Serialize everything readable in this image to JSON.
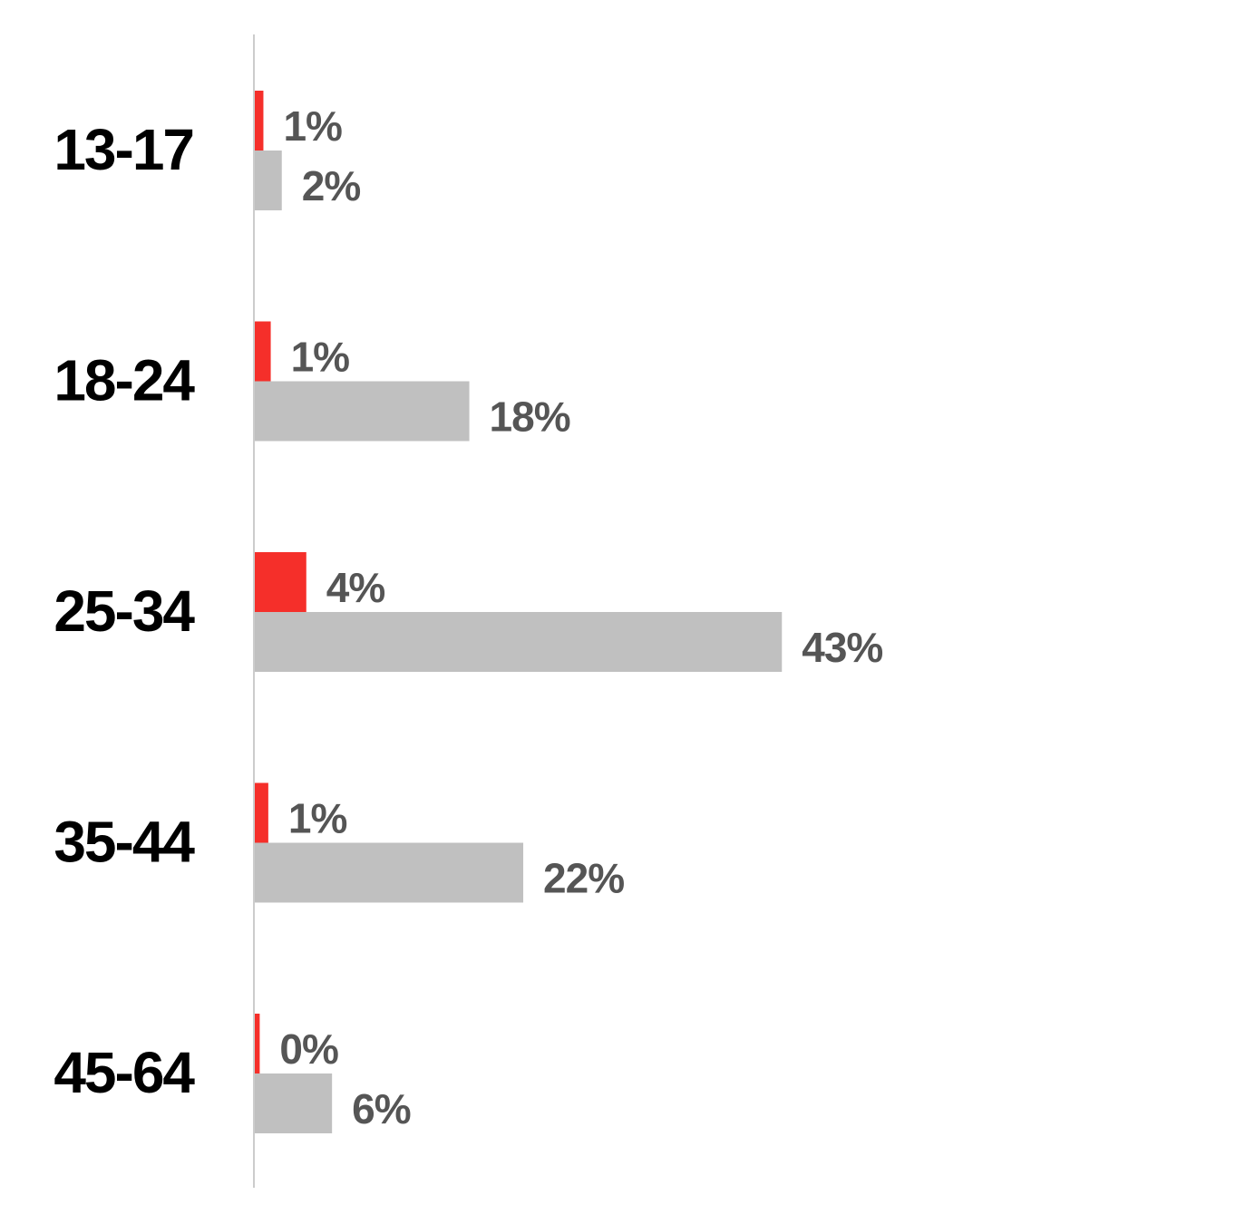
{
  "chart_data": {
    "type": "bar",
    "orientation": "horizontal",
    "categories": [
      "13-17",
      "18-24",
      "25-34",
      "35-44",
      "45-64"
    ],
    "series": [
      {
        "color": "#f52f2a",
        "values": [
          0.7,
          1.3,
          4.2,
          1.1,
          0.4
        ],
        "value_labels": [
          "1%",
          "1%",
          "4%",
          "1%",
          "0%"
        ]
      },
      {
        "color": "#c0c0c0",
        "values": [
          2.2,
          17.5,
          43,
          21.9,
          6.3
        ],
        "value_labels": [
          "2%",
          "18%",
          "43%",
          "22%",
          "6%"
        ]
      }
    ],
    "xlim": [
      0,
      80
    ]
  }
}
